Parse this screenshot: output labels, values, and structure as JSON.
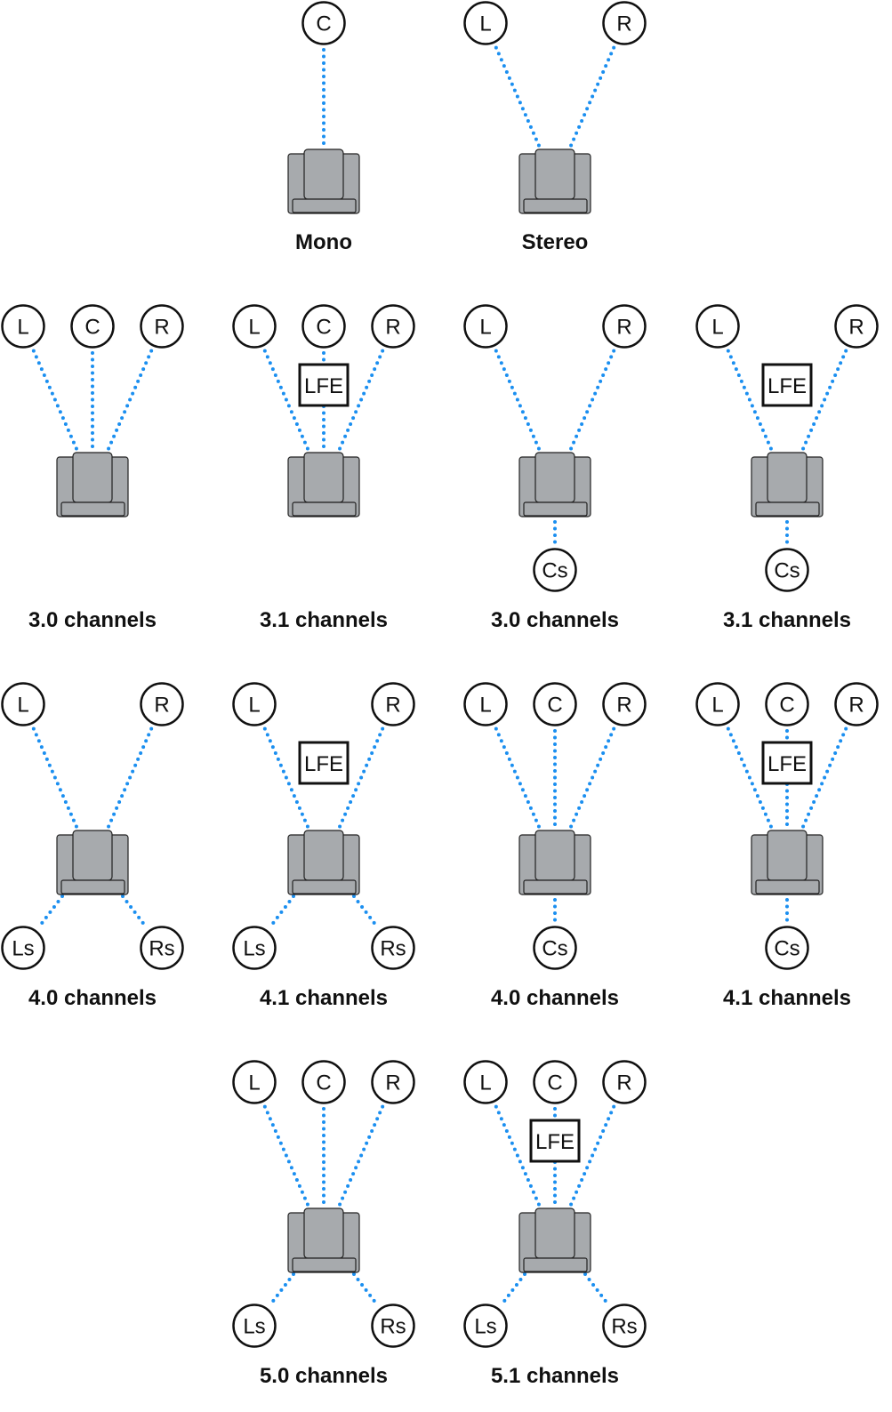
{
  "colors": {
    "line": "#1b8ff0",
    "chair": "#a7aaad",
    "outline": "#222222"
  },
  "diagrams": [
    {
      "label": "Mono",
      "front": [
        "C"
      ],
      "lfe": false,
      "rear": []
    },
    {
      "label": "Stereo",
      "front": [
        "L",
        "R"
      ],
      "lfe": false,
      "rear": []
    },
    {
      "label": "3.0 channels",
      "front": [
        "L",
        "C",
        "R"
      ],
      "lfe": false,
      "rear": []
    },
    {
      "label": "3.1 channels",
      "front": [
        "L",
        "C",
        "R"
      ],
      "lfe": true,
      "rear": []
    },
    {
      "label": "3.0 channels",
      "front": [
        "L",
        "R"
      ],
      "lfe": false,
      "rear": [
        "Cs"
      ]
    },
    {
      "label": "3.1 channels",
      "front": [
        "L",
        "R"
      ],
      "lfe": true,
      "rear": [
        "Cs"
      ]
    },
    {
      "label": "4.0 channels",
      "front": [
        "L",
        "R"
      ],
      "lfe": false,
      "rear": [
        "Ls",
        "Rs"
      ]
    },
    {
      "label": "4.1 channels",
      "front": [
        "L",
        "R"
      ],
      "lfe": true,
      "rear": [
        "Ls",
        "Rs"
      ]
    },
    {
      "label": "4.0 channels",
      "front": [
        "L",
        "C",
        "R"
      ],
      "lfe": false,
      "rear": [
        "Cs"
      ]
    },
    {
      "label": "4.1 channels",
      "front": [
        "L",
        "C",
        "R"
      ],
      "lfe": true,
      "rear": [
        "Cs"
      ]
    },
    {
      "label": "5.0 channels",
      "front": [
        "L",
        "C",
        "R"
      ],
      "lfe": false,
      "rear": [
        "Ls",
        "Rs"
      ]
    },
    {
      "label": "5.1 channels",
      "front": [
        "L",
        "C",
        "R"
      ],
      "lfe": true,
      "rear": [
        "Ls",
        "Rs"
      ]
    }
  ],
  "lfe_label": "LFE"
}
